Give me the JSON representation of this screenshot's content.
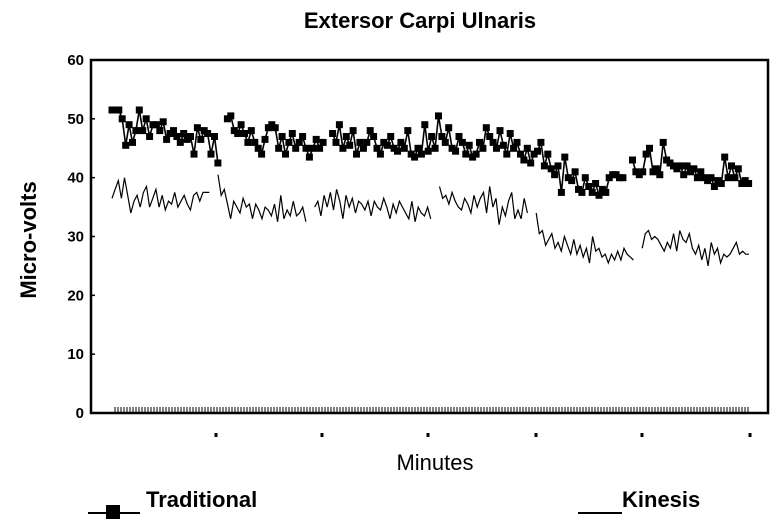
{
  "chart_data": {
    "type": "line",
    "title": "Extersor Carpi Ulnaris",
    "xlabel": "Minutes",
    "ylabel": "Micro-volts",
    "ylim": [
      0,
      60
    ],
    "yticks": [
      0,
      10,
      20,
      30,
      40,
      50,
      60
    ],
    "x_tick_labels": [],
    "grid": false,
    "legend_position": "bottom",
    "series": [
      {
        "name": "Traditional",
        "marker": "square",
        "color": "#000000",
        "segments": [
          [
            51.5,
            51.5,
            51.5,
            50,
            45.5,
            49,
            46,
            48,
            51.5,
            48,
            50,
            47,
            49,
            49,
            48,
            49.5,
            46.5,
            47.5,
            48,
            47,
            46,
            47.5,
            46.5,
            47,
            44,
            48.5,
            46.5,
            48,
            47.5,
            44,
            47,
            42.5
          ],
          [
            50,
            50.5,
            48,
            47.5,
            49,
            47.5,
            46,
            48,
            46,
            45,
            44,
            46.5,
            48.5,
            49,
            48.5,
            45,
            47,
            44,
            46,
            47.5,
            45,
            46,
            47,
            45,
            43.5,
            45,
            46.5,
            45,
            46
          ],
          [
            47.5,
            46,
            49,
            45,
            47,
            45.5,
            48,
            44,
            46,
            45,
            46,
            48,
            47,
            45,
            44,
            46,
            45.5,
            47,
            45,
            44.5,
            46,
            45,
            48,
            44,
            43.5,
            45,
            44,
            49,
            44.5,
            47,
            45,
            50.5,
            47,
            46,
            48.5,
            45,
            44.5,
            47,
            46,
            44,
            45.5,
            43.5,
            44,
            46,
            45,
            48.5,
            47,
            46,
            45,
            48,
            45.5,
            44,
            47.5,
            45,
            46,
            44,
            43,
            45,
            42.5,
            44,
            44.5,
            46,
            42,
            44,
            41.5,
            40.5,
            42,
            37.5,
            43.5,
            40,
            39.5,
            41,
            38,
            37.5,
            40,
            38.5,
            37.5,
            39,
            37,
            38,
            37.5,
            40,
            40.5,
            40.5,
            40,
            40
          ],
          [
            43,
            41,
            40.5,
            41,
            44,
            45,
            41,
            41.5,
            40.5,
            46,
            43,
            42.5,
            42,
            41.5,
            42,
            40.5,
            42,
            41,
            41.5,
            40,
            41,
            40,
            39.5,
            40,
            38.5,
            39.5,
            39,
            43.5,
            40,
            42,
            40,
            41.5,
            39,
            39.5,
            39
          ]
        ]
      },
      {
        "name": "Kinesis",
        "marker": "none",
        "color": "#000000",
        "segments": [
          [
            36.5,
            38,
            39.5,
            36.5,
            40,
            37,
            34,
            36,
            37,
            35,
            37.5,
            38.5,
            35,
            36.5,
            38,
            35,
            37,
            34.5,
            36,
            35.5,
            37.5,
            35,
            36,
            37,
            35.5,
            34.5,
            37,
            37.5,
            36,
            37.5,
            37.5,
            37.5
          ],
          [
            40.5,
            37,
            38,
            35.5,
            33,
            36,
            35,
            34,
            36.5,
            35,
            35.5,
            33,
            35.5,
            34.5,
            33,
            35,
            34.5,
            33.5,
            35.5,
            32.5,
            37,
            33,
            34.5,
            33.5,
            36,
            33.5,
            34,
            35,
            32.5
          ],
          [
            35,
            36,
            33.5,
            37,
            35,
            37.5,
            34.5,
            38,
            36,
            33,
            37,
            35,
            36.5,
            34,
            36,
            35.5,
            34.5,
            36,
            33.5,
            36,
            35,
            34.5,
            36.5,
            35,
            33,
            35.5,
            34,
            36,
            35,
            34,
            33,
            36,
            32.5,
            35,
            34,
            33.5,
            35,
            33
          ],
          [
            38.5,
            36.5,
            37,
            35.5,
            37.5,
            36,
            35,
            34.5,
            36.5,
            35.5,
            34,
            37,
            35,
            36.5,
            37.5,
            34,
            38.5,
            35,
            36.5,
            32,
            35,
            33.5,
            36,
            37.5,
            33,
            34.5,
            33,
            36.5,
            34
          ],
          [
            34,
            30.5,
            31,
            28.5,
            29.5,
            30.5,
            28,
            29,
            27.5,
            30,
            28.5,
            27,
            29.5,
            27,
            28.5,
            26.5,
            28,
            25.5,
            30,
            27.5,
            28,
            26.5,
            27,
            25.5,
            27,
            26,
            27.5,
            26,
            28,
            27,
            26.5,
            26
          ],
          [
            28,
            30.5,
            31,
            29.5,
            30,
            29.5,
            28.5,
            27.5,
            29,
            28,
            30.5,
            27.5,
            31,
            29.5,
            29,
            30.5,
            28,
            27,
            28.5,
            26,
            28,
            25,
            29,
            27,
            28,
            25.5,
            27,
            26.5,
            27,
            28,
            29,
            27,
            27.5,
            27,
            27
          ]
        ]
      }
    ]
  }
}
